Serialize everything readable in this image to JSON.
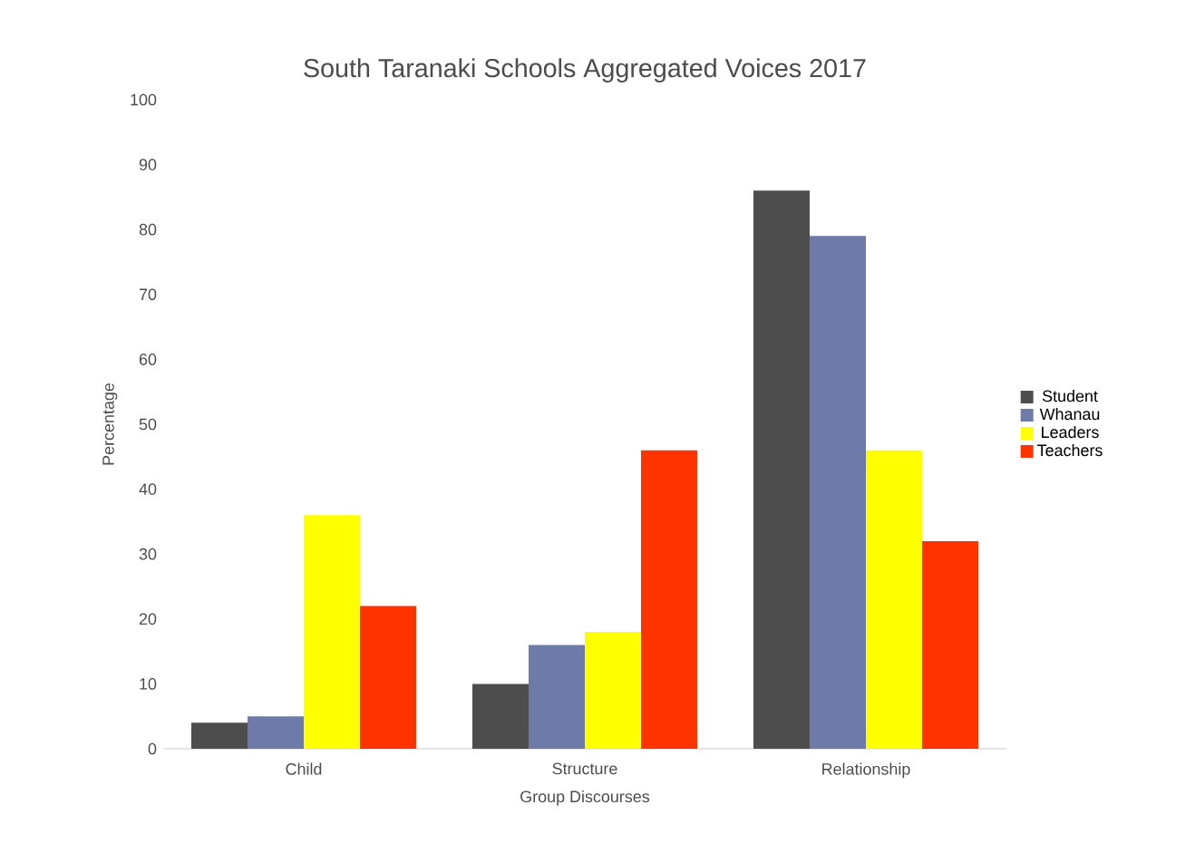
{
  "chart_data": {
    "type": "bar",
    "title": "South Taranaki Schools Aggregated Voices 2017",
    "xlabel": "Group Discourses",
    "ylabel": "Percentage",
    "categories": [
      "Child",
      "Structure",
      "Relationship"
    ],
    "series": [
      {
        "name": "Student",
        "color": "#4d4d4d",
        "values": [
          4,
          10,
          86
        ]
      },
      {
        "name": "Whanau",
        "color": "#6e7aa8",
        "values": [
          5,
          16,
          79
        ]
      },
      {
        "name": "Leaders",
        "color": "#ffff00",
        "values": [
          36,
          18,
          46
        ]
      },
      {
        "name": "Teachers",
        "color": "#ff3300",
        "values": [
          22,
          46,
          32
        ]
      }
    ],
    "ylim": [
      0,
      100
    ],
    "yticks": [
      0,
      10,
      20,
      30,
      40,
      50,
      60,
      70,
      80,
      90,
      100
    ],
    "legend": "right",
    "grid": false
  }
}
